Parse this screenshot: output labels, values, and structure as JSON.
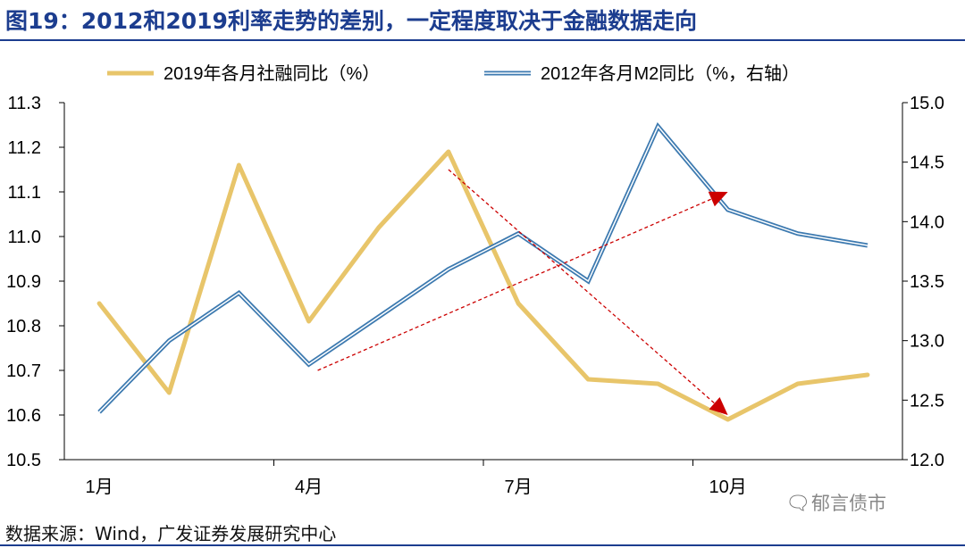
{
  "title": "图19：2012和2019利率走势的差别，一定程度取决于金融数据走向",
  "source": "数据来源：Wind，广发证券发展研究中心",
  "watermark": {
    "icon": "wechat-icon",
    "text": "郁言债市"
  },
  "colors": {
    "title": "#1c3d8f",
    "series_2019": "#e8c56a",
    "series_2012_outer": "#3d7ab0",
    "series_2012_inner": "#ffffff",
    "arrow": "#cc0000"
  },
  "chart_data": {
    "type": "line",
    "x": [
      "1月",
      "2月",
      "3月",
      "4月",
      "5月",
      "6月",
      "7月",
      "8月",
      "9月",
      "10月",
      "11月",
      "12月"
    ],
    "x_tick_labels": [
      "1月",
      "4月",
      "7月",
      "10月"
    ],
    "series": [
      {
        "name": "2019年各月社融同比（%）",
        "axis": "left",
        "values": [
          10.85,
          10.65,
          11.16,
          10.81,
          11.02,
          11.19,
          10.85,
          10.68,
          10.67,
          10.59,
          10.67,
          10.69
        ]
      },
      {
        "name": "2012年各月M2同比（%，右轴）",
        "axis": "right",
        "values": [
          12.4,
          13.0,
          13.4,
          12.8,
          13.2,
          13.6,
          13.9,
          13.5,
          14.8,
          14.1,
          13.9,
          13.8
        ]
      }
    ],
    "y_left": {
      "lim": [
        10.5,
        11.3
      ],
      "ticks": [
        "10.5",
        "10.6",
        "10.7",
        "10.8",
        "10.9",
        "11.0",
        "11.1",
        "11.2",
        "11.3"
      ]
    },
    "y_right": {
      "lim": [
        12.0,
        15.0
      ],
      "ticks": [
        "12.0",
        "12.5",
        "13.0",
        "13.5",
        "14.0",
        "14.5",
        "15.0"
      ]
    },
    "legend": "top",
    "grid": false,
    "annotations": [
      {
        "type": "arrow",
        "style": "dashed",
        "axis": "left",
        "from": {
          "x": "6月",
          "y": 11.15
        },
        "to": {
          "x": "10月",
          "y": 10.6
        }
      },
      {
        "type": "arrow",
        "style": "dashed",
        "axis": "right",
        "from": {
          "x": "4月",
          "y": 12.75
        },
        "to": {
          "x": "10月",
          "y": 14.25
        }
      }
    ]
  }
}
